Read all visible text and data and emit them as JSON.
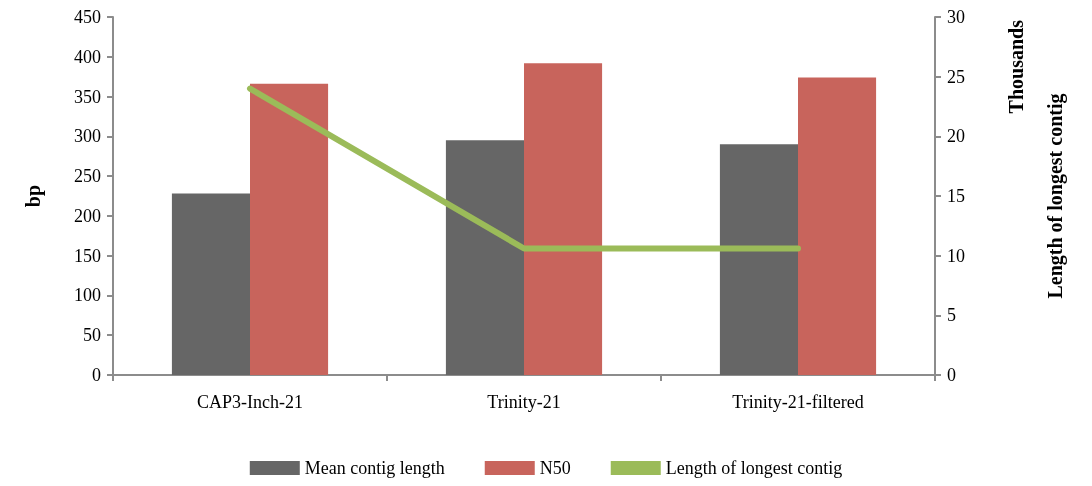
{
  "chart_data": {
    "type": "bar",
    "categories": [
      "CAP3-Inch-21",
      "Trinity-21",
      "Trinity-21-filtered"
    ],
    "series": [
      {
        "name": "Mean contig length",
        "color": "#666666",
        "values": [
          228,
          295,
          290
        ]
      },
      {
        "name": "N50",
        "color": "#c8645c",
        "values": [
          366,
          392,
          374
        ]
      },
      {
        "name": "Length of longest contig",
        "type": "line",
        "axis": "y2",
        "color": "#9bbb59",
        "values": [
          24.0,
          10.6,
          10.6
        ]
      }
    ],
    "ylabel": "bp",
    "y2label": "Length of longest contig",
    "annotations": [
      "Thousands"
    ],
    "ylim": [
      0,
      450
    ],
    "yticks": [
      0,
      50,
      100,
      150,
      200,
      250,
      300,
      350,
      400,
      450
    ],
    "y2lim": [
      0,
      30
    ],
    "y2ticks": [
      0,
      5,
      10,
      15,
      20,
      25,
      30
    ],
    "grid": false,
    "legend": "bottom",
    "marker": "none",
    "line_style": "solid"
  }
}
